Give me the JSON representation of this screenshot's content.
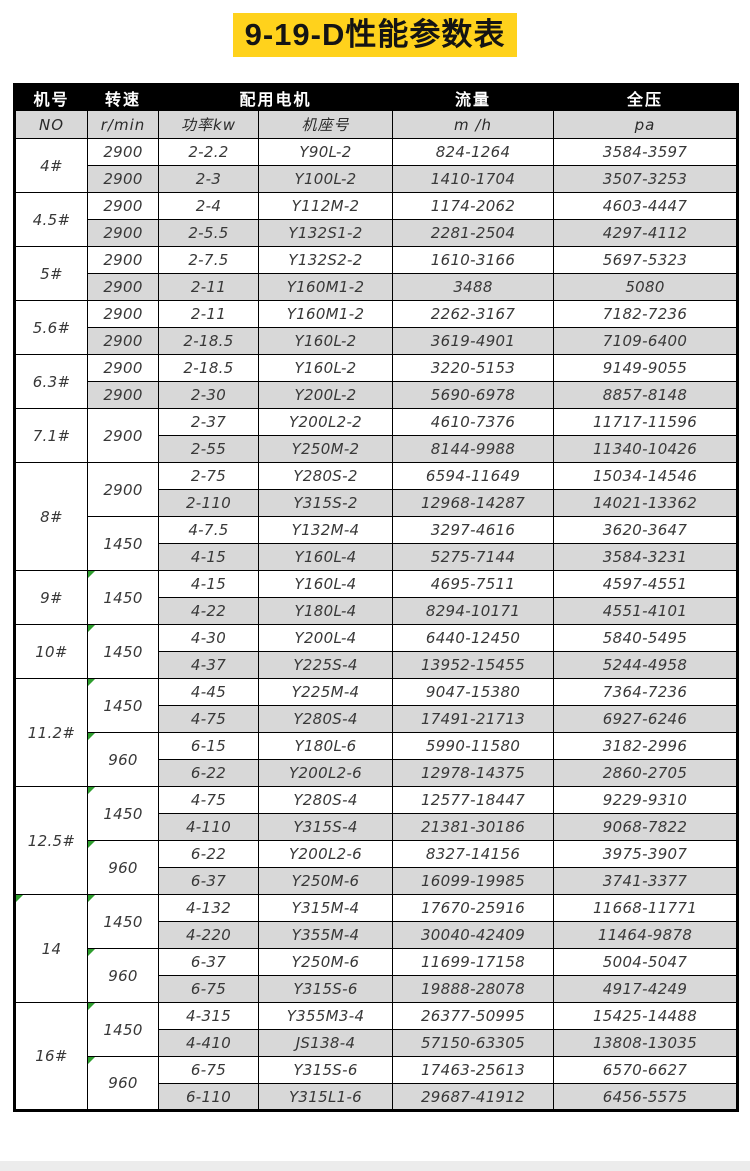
{
  "title": "9-19-D性能参数表",
  "colors": {
    "title_highlight": "#FFD21C",
    "header_background": "#000000",
    "row_band": "#d8d8d8",
    "corner_flag_green": "#2f9e2f"
  },
  "table": {
    "header_row1": [
      "机号",
      "转速",
      "配用电机",
      "流量",
      "全压"
    ],
    "header_row2": [
      "NO",
      "r/min",
      "功率kw",
      "机座号",
      "m /h",
      "pa"
    ],
    "groups": [
      {
        "no": "4#",
        "no_marker": false,
        "speed_cells": [
          {
            "value": "2900",
            "rowspan": 1,
            "marker": false
          },
          {
            "value": "2900",
            "rowspan": 1,
            "marker": false
          }
        ],
        "rows": [
          {
            "power": "2-2.2",
            "frame": "Y90L-2",
            "flow": "824-1264",
            "pressure": "3584-3597"
          },
          {
            "power": "2-3",
            "frame": "Y100L-2",
            "flow": "1410-1704",
            "pressure": "3507-3253"
          }
        ]
      },
      {
        "no": "4.5#",
        "no_marker": false,
        "speed_cells": [
          {
            "value": "2900",
            "rowspan": 1,
            "marker": false
          },
          {
            "value": "2900",
            "rowspan": 1,
            "marker": false
          }
        ],
        "rows": [
          {
            "power": "2-4",
            "frame": "Y112M-2",
            "flow": "1174-2062",
            "pressure": "4603-4447"
          },
          {
            "power": "2-5.5",
            "frame": "Y132S1-2",
            "flow": "2281-2504",
            "pressure": "4297-4112"
          }
        ]
      },
      {
        "no": "5#",
        "no_marker": false,
        "speed_cells": [
          {
            "value": "2900",
            "rowspan": 1,
            "marker": false
          },
          {
            "value": "2900",
            "rowspan": 1,
            "marker": false
          }
        ],
        "rows": [
          {
            "power": "2-7.5",
            "frame": "Y132S2-2",
            "flow": "1610-3166",
            "pressure": "5697-5323"
          },
          {
            "power": "2-11",
            "frame": "Y160M1-2",
            "flow": "3488",
            "pressure": "5080"
          }
        ]
      },
      {
        "no": "5.6#",
        "no_marker": false,
        "speed_cells": [
          {
            "value": "2900",
            "rowspan": 1,
            "marker": false
          },
          {
            "value": "2900",
            "rowspan": 1,
            "marker": false
          }
        ],
        "rows": [
          {
            "power": "2-11",
            "frame": "Y160M1-2",
            "flow": "2262-3167",
            "pressure": "7182-7236"
          },
          {
            "power": "2-18.5",
            "frame": "Y160L-2",
            "flow": "3619-4901",
            "pressure": "7109-6400"
          }
        ]
      },
      {
        "no": "6.3#",
        "no_marker": false,
        "speed_cells": [
          {
            "value": "2900",
            "rowspan": 1,
            "marker": false
          },
          {
            "value": "2900",
            "rowspan": 1,
            "marker": false
          }
        ],
        "rows": [
          {
            "power": "2-18.5",
            "frame": "Y160L-2",
            "flow": "3220-5153",
            "pressure": "9149-9055"
          },
          {
            "power": "2-30",
            "frame": "Y200L-2",
            "flow": "5690-6978",
            "pressure": "8857-8148"
          }
        ]
      },
      {
        "no": "7.1#",
        "no_marker": false,
        "speed_cells": [
          {
            "value": "2900",
            "rowspan": 2,
            "marker": false
          }
        ],
        "rows": [
          {
            "power": "2-37",
            "frame": "Y200L2-2",
            "flow": "4610-7376",
            "pressure": "11717-11596"
          },
          {
            "power": "2-55",
            "frame": "Y250M-2",
            "flow": "8144-9988",
            "pressure": "11340-10426"
          }
        ]
      },
      {
        "no": "8#",
        "no_marker": false,
        "speed_cells": [
          {
            "value": "2900",
            "rowspan": 2,
            "marker": false
          },
          {
            "value": "1450",
            "rowspan": 2,
            "marker": false
          }
        ],
        "rows": [
          {
            "power": "2-75",
            "frame": "Y280S-2",
            "flow": "6594-11649",
            "pressure": "15034-14546"
          },
          {
            "power": "2-110",
            "frame": "Y315S-2",
            "flow": "12968-14287",
            "pressure": "14021-13362"
          },
          {
            "power": "4-7.5",
            "frame": "Y132M-4",
            "flow": "3297-4616",
            "pressure": "3620-3647"
          },
          {
            "power": "4-15",
            "frame": "Y160L-4",
            "flow": "5275-7144",
            "pressure": "3584-3231"
          }
        ]
      },
      {
        "no": "9#",
        "no_marker": false,
        "speed_cells": [
          {
            "value": "1450",
            "rowspan": 2,
            "marker": true
          }
        ],
        "rows": [
          {
            "power": "4-15",
            "frame": "Y160L-4",
            "flow": "4695-7511",
            "pressure": "4597-4551"
          },
          {
            "power": "4-22",
            "frame": "Y180L-4",
            "flow": "8294-10171",
            "pressure": "4551-4101"
          }
        ]
      },
      {
        "no": "10#",
        "no_marker": false,
        "speed_cells": [
          {
            "value": "1450",
            "rowspan": 2,
            "marker": true
          }
        ],
        "rows": [
          {
            "power": "4-30",
            "frame": "Y200L-4",
            "flow": "6440-12450",
            "pressure": "5840-5495"
          },
          {
            "power": "4-37",
            "frame": "Y225S-4",
            "flow": "13952-15455",
            "pressure": "5244-4958"
          }
        ]
      },
      {
        "no": "11.2#",
        "no_marker": false,
        "speed_cells": [
          {
            "value": "1450",
            "rowspan": 2,
            "marker": true
          },
          {
            "value": "960",
            "rowspan": 2,
            "marker": true
          }
        ],
        "rows": [
          {
            "power": "4-45",
            "frame": "Y225M-4",
            "flow": "9047-15380",
            "pressure": "7364-7236"
          },
          {
            "power": "4-75",
            "frame": "Y280S-4",
            "flow": "17491-21713",
            "pressure": "6927-6246"
          },
          {
            "power": "6-15",
            "frame": "Y180L-6",
            "flow": "5990-11580",
            "pressure": "3182-2996"
          },
          {
            "power": "6-22",
            "frame": "Y200L2-6",
            "flow": "12978-14375",
            "pressure": "2860-2705"
          }
        ]
      },
      {
        "no": "12.5#",
        "no_marker": false,
        "speed_cells": [
          {
            "value": "1450",
            "rowspan": 2,
            "marker": true
          },
          {
            "value": "960",
            "rowspan": 2,
            "marker": true
          }
        ],
        "rows": [
          {
            "power": "4-75",
            "frame": "Y280S-4",
            "flow": "12577-18447",
            "pressure": "9229-9310"
          },
          {
            "power": "4-110",
            "frame": "Y315S-4",
            "flow": "21381-30186",
            "pressure": "9068-7822"
          },
          {
            "power": "6-22",
            "frame": "Y200L2-6",
            "flow": "8327-14156",
            "pressure": "3975-3907"
          },
          {
            "power": "6-37",
            "frame": "Y250M-6",
            "flow": "16099-19985",
            "pressure": "3741-3377"
          }
        ]
      },
      {
        "no": "14",
        "no_marker": true,
        "speed_cells": [
          {
            "value": "1450",
            "rowspan": 2,
            "marker": true
          },
          {
            "value": "960",
            "rowspan": 2,
            "marker": true
          }
        ],
        "rows": [
          {
            "power": "4-132",
            "frame": "Y315M-4",
            "flow": "17670-25916",
            "pressure": "11668-11771"
          },
          {
            "power": "4-220",
            "frame": "Y355M-4",
            "flow": "30040-42409",
            "pressure": "11464-9878"
          },
          {
            "power": "6-37",
            "frame": "Y250M-6",
            "flow": "11699-17158",
            "pressure": "5004-5047"
          },
          {
            "power": "6-75",
            "frame": "Y315S-6",
            "flow": "19888-28078",
            "pressure": "4917-4249"
          }
        ]
      },
      {
        "no": "16#",
        "no_marker": false,
        "speed_cells": [
          {
            "value": "1450",
            "rowspan": 2,
            "marker": true
          },
          {
            "value": "960",
            "rowspan": 2,
            "marker": true
          }
        ],
        "rows": [
          {
            "power": "4-315",
            "frame": "Y355M3-4",
            "flow": "26377-50995",
            "pressure": "15425-14488"
          },
          {
            "power": "4-410",
            "frame": "JS138-4",
            "flow": "57150-63305",
            "pressure": "13808-13035"
          },
          {
            "power": "6-75",
            "frame": "Y315S-6",
            "flow": "17463-25613",
            "pressure": "6570-6627"
          },
          {
            "power": "6-110",
            "frame": "Y315L1-6",
            "flow": "29687-41912",
            "pressure": "6456-5575"
          }
        ]
      }
    ]
  }
}
